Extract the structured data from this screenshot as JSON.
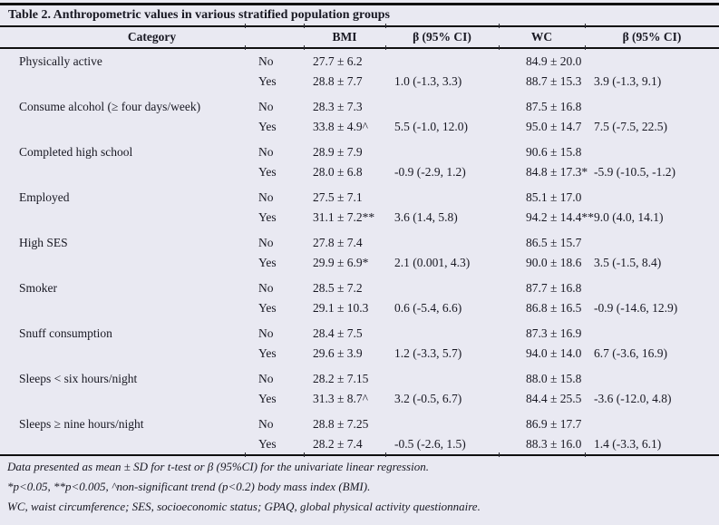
{
  "table": {
    "title": "Table 2. Anthropometric values in various stratified population groups",
    "headers": {
      "category": "Category",
      "bmi": "BMI",
      "bmi_beta": "β (95% CI)",
      "wc": "WC",
      "wc_beta": "β (95% CI)"
    },
    "groups": [
      {
        "category": "Physically active",
        "rows": [
          {
            "level": "No",
            "bmi": "27.7 ± 6.2",
            "bmi_beta": "",
            "wc": "84.9 ± 20.0",
            "wc_beta": ""
          },
          {
            "level": "Yes",
            "bmi": "28.8 ± 7.7",
            "bmi_beta": "1.0 (-1.3, 3.3)",
            "wc": "88.7 ± 15.3",
            "wc_beta": "3.9 (-1.3, 9.1)"
          }
        ]
      },
      {
        "category": "Consume alcohol (≥ four days/week)",
        "rows": [
          {
            "level": "No",
            "bmi": "28.3 ± 7.3",
            "bmi_beta": "",
            "wc": "87.5 ± 16.8",
            "wc_beta": ""
          },
          {
            "level": "Yes",
            "bmi": "33.8 ± 4.9^",
            "bmi_beta": "5.5 (-1.0, 12.0)",
            "wc": "95.0 ± 14.7",
            "wc_beta": "7.5 (-7.5, 22.5)"
          }
        ]
      },
      {
        "category": "Completed high school",
        "rows": [
          {
            "level": "No",
            "bmi": "28.9 ± 7.9",
            "bmi_beta": "",
            "wc": "90.6 ± 15.8",
            "wc_beta": ""
          },
          {
            "level": "Yes",
            "bmi": "28.0 ± 6.8",
            "bmi_beta": "-0.9 (-2.9, 1.2)",
            "wc": "84.8 ± 17.3*",
            "wc_beta": "-5.9 (-10.5, -1.2)"
          }
        ]
      },
      {
        "category": "Employed",
        "rows": [
          {
            "level": "No",
            "bmi": "27.5 ± 7.1",
            "bmi_beta": "",
            "wc": "85.1 ± 17.0",
            "wc_beta": ""
          },
          {
            "level": "Yes",
            "bmi": "31.1 ± 7.2**",
            "bmi_beta": "3.6 (1.4, 5.8)",
            "wc": "94.2 ± 14.4**",
            "wc_beta": "9.0 (4.0, 14.1)"
          }
        ]
      },
      {
        "category": "High SES",
        "rows": [
          {
            "level": "No",
            "bmi": "27.8 ± 7.4",
            "bmi_beta": "",
            "wc": "86.5 ± 15.7",
            "wc_beta": ""
          },
          {
            "level": "Yes",
            "bmi": "29.9 ± 6.9*",
            "bmi_beta": "2.1 (0.001, 4.3)",
            "wc": "90.0 ± 18.6",
            "wc_beta": "3.5 (-1.5, 8.4)"
          }
        ]
      },
      {
        "category": "Smoker",
        "rows": [
          {
            "level": "No",
            "bmi": "28.5 ± 7.2",
            "bmi_beta": "",
            "wc": "87.7 ± 16.8",
            "wc_beta": ""
          },
          {
            "level": "Yes",
            "bmi": "29.1 ± 10.3",
            "bmi_beta": "0.6 (-5.4, 6.6)",
            "wc": "86.8 ± 16.5",
            "wc_beta": "-0.9 (-14.6, 12.9)"
          }
        ]
      },
      {
        "category": "Snuff consumption",
        "rows": [
          {
            "level": "No",
            "bmi": "28.4 ± 7.5",
            "bmi_beta": "",
            "wc": "87.3 ± 16.9",
            "wc_beta": ""
          },
          {
            "level": "Yes",
            "bmi": "29.6 ± 3.9",
            "bmi_beta": "1.2 (-3.3, 5.7)",
            "wc": "94.0 ± 14.0",
            "wc_beta": "6.7 (-3.6, 16.9)"
          }
        ]
      },
      {
        "category": "Sleeps < six hours/night",
        "rows": [
          {
            "level": "No",
            "bmi": "28.2 ± 7.15",
            "bmi_beta": "",
            "wc": "88.0 ± 15.8",
            "wc_beta": ""
          },
          {
            "level": "Yes",
            "bmi": "31.3 ± 8.7^",
            "bmi_beta": "3.2 (-0.5, 6.7)",
            "wc": "84.4 ± 25.5",
            "wc_beta": "-3.6 (-12.0, 4.8)"
          }
        ]
      },
      {
        "category": "Sleeps ≥ nine hours/night",
        "rows": [
          {
            "level": "No",
            "bmi": "28.8 ± 7.25",
            "bmi_beta": "",
            "wc": "86.9 ± 17.7",
            "wc_beta": ""
          },
          {
            "level": "Yes",
            "bmi": "28.2 ± 7.4",
            "bmi_beta": "-0.5 (-2.6, 1.5)",
            "wc": "88.3 ± 16.0",
            "wc_beta": "1.4 (-3.3, 6.1)"
          }
        ]
      }
    ],
    "footnotes": [
      "Data presented as mean ± SD for t-test or β (95%CI) for the univariate linear regression.",
      "*p<0.05, **p<0.005, ^non-significant trend (p<0.2) body mass index (BMI).",
      "WC, waist circumference; SES, socioeconomic status; GPAQ, global physical activity questionnaire."
    ],
    "colors": {
      "background": "#e9e9f2",
      "text": "#181822",
      "rule": "#101010"
    }
  }
}
